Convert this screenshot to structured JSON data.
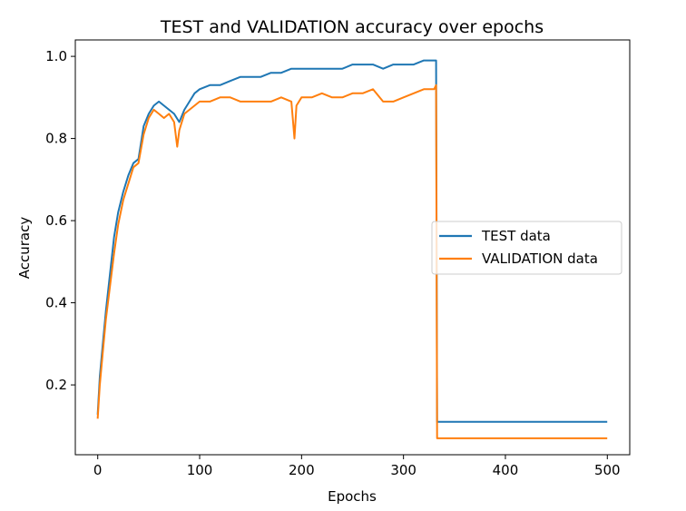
{
  "chart_data": {
    "type": "line",
    "title": "TEST and VALIDATION accuracy over epochs",
    "xlabel": "Epochs",
    "ylabel": "Accuracy",
    "xlim": [
      -22,
      522
    ],
    "ylim": [
      0.03,
      1.04
    ],
    "xticks": [
      0,
      100,
      200,
      300,
      400,
      500
    ],
    "yticks": [
      0.2,
      0.4,
      0.6,
      0.8,
      1.0
    ],
    "xtick_labels": [
      "0",
      "100",
      "200",
      "300",
      "400",
      "500"
    ],
    "ytick_labels": [
      "0.2",
      "0.4",
      "0.6",
      "0.8",
      "1.0"
    ],
    "grid": false,
    "legend_position": "center-right",
    "series": [
      {
        "name": "TEST data",
        "color": "#1f77b4",
        "x": [
          0,
          2,
          5,
          8,
          12,
          16,
          20,
          25,
          30,
          35,
          40,
          45,
          50,
          55,
          60,
          65,
          70,
          75,
          80,
          85,
          90,
          95,
          100,
          110,
          120,
          130,
          140,
          150,
          160,
          170,
          180,
          190,
          200,
          210,
          220,
          230,
          240,
          250,
          260,
          270,
          280,
          290,
          300,
          310,
          320,
          330,
          332,
          333,
          400,
          450,
          499
        ],
        "y": [
          0.13,
          0.22,
          0.3,
          0.38,
          0.47,
          0.56,
          0.62,
          0.67,
          0.71,
          0.74,
          0.75,
          0.83,
          0.86,
          0.88,
          0.89,
          0.88,
          0.87,
          0.86,
          0.84,
          0.87,
          0.89,
          0.91,
          0.92,
          0.93,
          0.93,
          0.94,
          0.95,
          0.95,
          0.95,
          0.96,
          0.96,
          0.97,
          0.97,
          0.97,
          0.97,
          0.97,
          0.97,
          0.98,
          0.98,
          0.98,
          0.97,
          0.98,
          0.98,
          0.98,
          0.99,
          0.99,
          0.99,
          0.11,
          0.11,
          0.11,
          0.11
        ]
      },
      {
        "name": "VALIDATION data",
        "color": "#ff7f0e",
        "x": [
          0,
          2,
          5,
          8,
          12,
          16,
          20,
          25,
          30,
          35,
          40,
          45,
          50,
          55,
          60,
          65,
          70,
          75,
          78,
          80,
          85,
          90,
          95,
          100,
          110,
          120,
          130,
          140,
          150,
          160,
          170,
          180,
          190,
          193,
          195,
          200,
          210,
          220,
          230,
          240,
          250,
          260,
          270,
          280,
          290,
          300,
          310,
          320,
          330,
          332,
          333,
          400,
          450,
          499
        ],
        "y": [
          0.12,
          0.2,
          0.28,
          0.36,
          0.44,
          0.52,
          0.59,
          0.65,
          0.69,
          0.73,
          0.74,
          0.81,
          0.85,
          0.87,
          0.86,
          0.85,
          0.86,
          0.84,
          0.78,
          0.82,
          0.86,
          0.87,
          0.88,
          0.89,
          0.89,
          0.9,
          0.9,
          0.89,
          0.89,
          0.89,
          0.89,
          0.9,
          0.89,
          0.8,
          0.88,
          0.9,
          0.9,
          0.91,
          0.9,
          0.9,
          0.91,
          0.91,
          0.92,
          0.89,
          0.89,
          0.9,
          0.91,
          0.92,
          0.92,
          0.93,
          0.07,
          0.07,
          0.07,
          0.07
        ]
      }
    ]
  }
}
